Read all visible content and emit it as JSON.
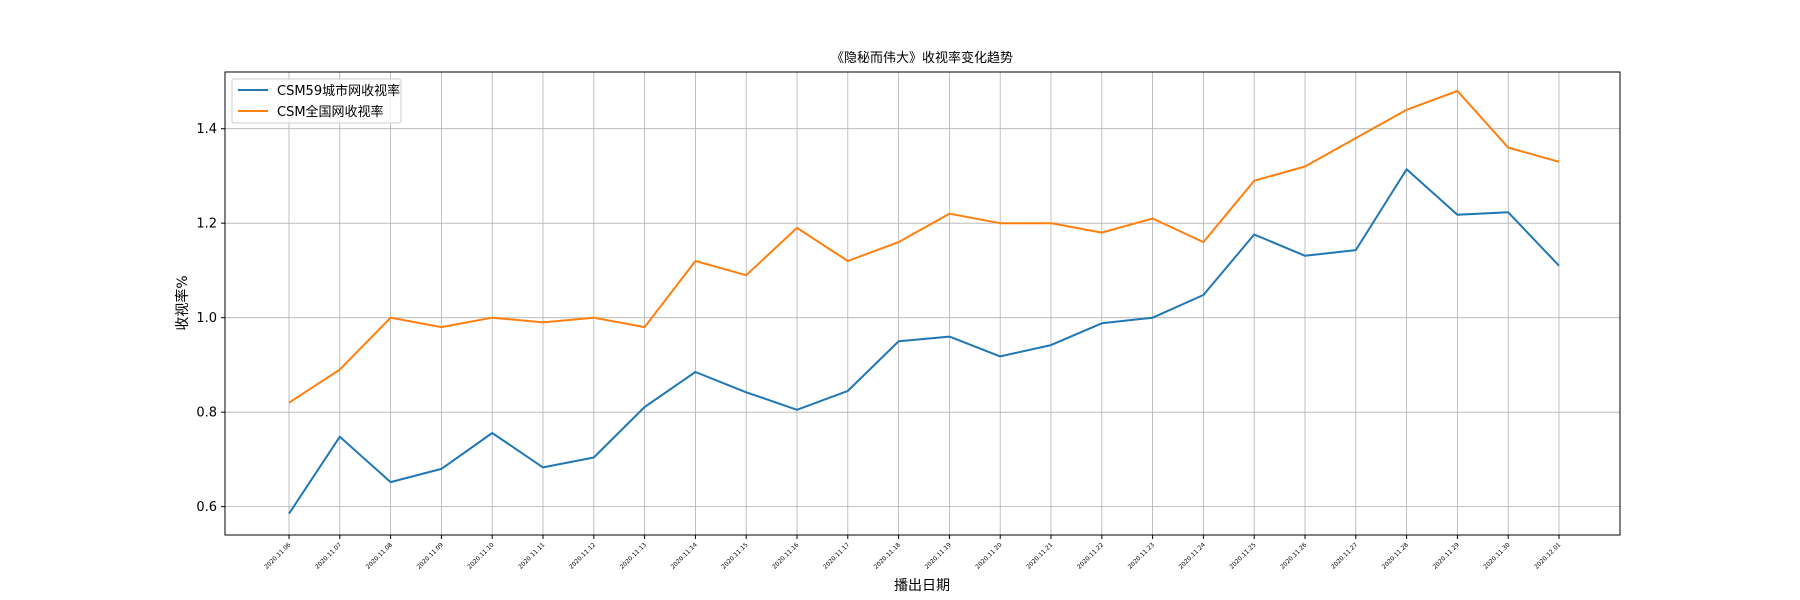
{
  "chart_data": {
    "type": "line",
    "title": "《隐秘而伟大》收视率变化趋势",
    "xlabel": "播出日期",
    "ylabel": "收视率%",
    "categories": [
      "2020.11.06",
      "2020.11.07",
      "2020.11.08",
      "2020.11.09",
      "2020.11.10",
      "2020.11.11",
      "2020.11.12",
      "2020.11.13",
      "2020.11.14",
      "2020.11.15",
      "2020.11.16",
      "2020.11.17",
      "2020.11.18",
      "2020.11.19",
      "2020.11.20",
      "2020.11.21",
      "2020.11.22",
      "2020.11.23",
      "2020.11.24",
      "2020.11.25",
      "2020.11.26",
      "2020.11.27",
      "2020.11.28",
      "2020.11.29",
      "2020.11.30",
      "2020.12.01"
    ],
    "series": [
      {
        "name": "CSM59城市网收视率",
        "color": "#1f77b4",
        "values": [
          0.585,
          0.748,
          0.652,
          0.68,
          0.756,
          0.683,
          0.704,
          0.811,
          0.885,
          0.842,
          0.805,
          0.845,
          0.95,
          0.96,
          0.918,
          0.942,
          0.988,
          1.0,
          1.048,
          1.176,
          1.131,
          1.143,
          1.314,
          1.218,
          1.223,
          1.11
        ]
      },
      {
        "name": "CSM全国网收视率",
        "color": "#ff7f0e",
        "values": [
          0.82,
          0.89,
          1.0,
          0.98,
          1.0,
          0.99,
          1.0,
          0.98,
          1.12,
          1.09,
          1.19,
          1.12,
          1.16,
          1.22,
          1.2,
          1.2,
          1.18,
          1.21,
          1.16,
          1.29,
          1.32,
          1.38,
          1.44,
          1.48,
          1.36,
          1.33
        ]
      }
    ],
    "yticks": [
      "0.6",
      "0.8",
      "1.0",
      "1.2",
      "1.4"
    ],
    "ylim": [
      0.54,
      1.52
    ],
    "grid": true,
    "legend_position": "upper-left"
  }
}
